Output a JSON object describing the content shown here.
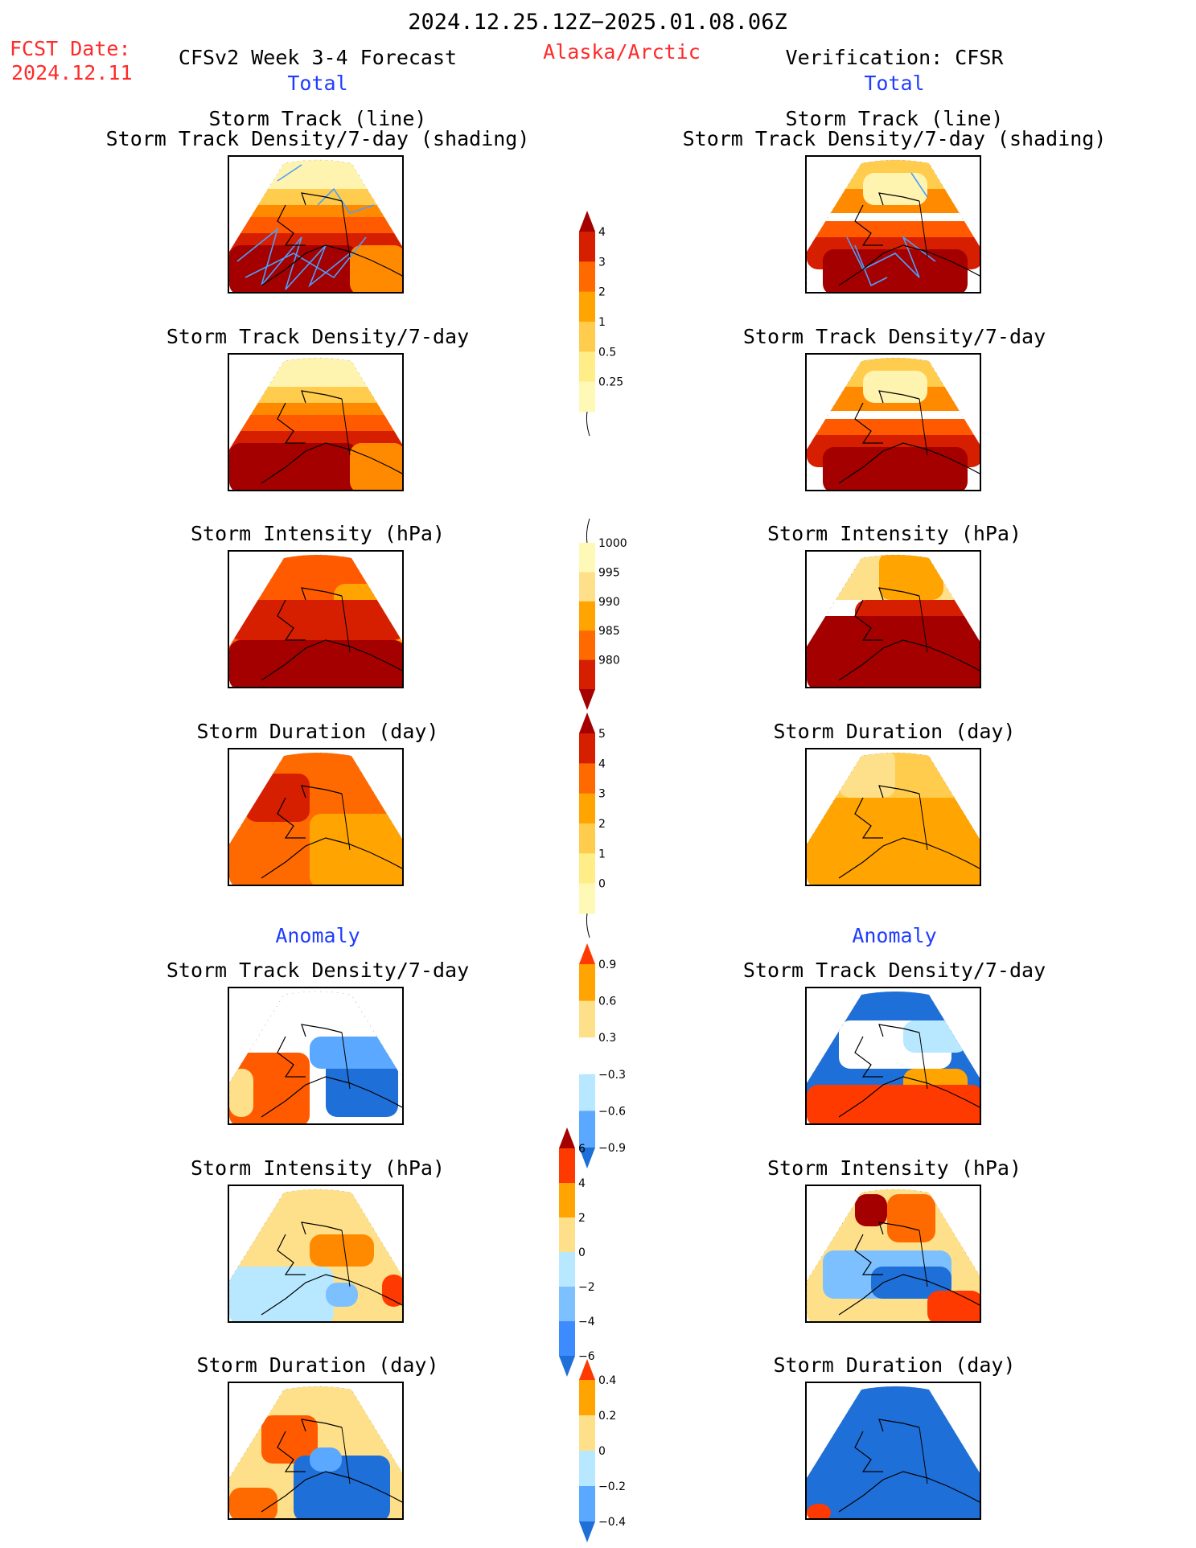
{
  "header": {
    "period": "2024.12.25.12Z−2025.01.08.06Z",
    "fcst_label": "FCST Date:",
    "fcst_date": "2024.12.11",
    "model": "CFSv2 Week 3-4 Forecast",
    "region": "Alaska/Arctic",
    "verification": "Verification: CFSR"
  },
  "sections": {
    "total": "Total",
    "anomaly": "Anomaly"
  },
  "panel_titles": {
    "track_line": "Storm Track (line)",
    "track_density_shading": "Storm Track Density/7-day (shading)",
    "track_density": "Storm Track Density/7-day",
    "intensity": "Storm Intensity (hPa)",
    "duration": "Storm Duration (day)"
  },
  "colorbars": {
    "density_total": {
      "labels": [
        "4",
        "3",
        "2",
        "1",
        "0.5",
        "0.25"
      ],
      "colors": [
        "#a50000",
        "#d61e00",
        "#ff6a00",
        "#ffa400",
        "#ffcc4d",
        "#ffee88",
        "#fff9b8"
      ]
    },
    "intensity_total": {
      "labels": [
        "1000",
        "995",
        "990",
        "985",
        "980"
      ],
      "colors": [
        "#fff9b8",
        "#ffe08a",
        "#ffa400",
        "#ff6a00",
        "#d61e00",
        "#a50000"
      ]
    },
    "duration_total": {
      "labels": [
        "5",
        "4",
        "3",
        "2",
        "1",
        "0"
      ],
      "colors": [
        "#a50000",
        "#d61e00",
        "#ff6a00",
        "#ffa400",
        "#ffcc4d",
        "#ffee88",
        "#fff9b8"
      ]
    },
    "density_anom": {
      "labels": [
        "0.9",
        "0.6",
        "0.3",
        "−0.3",
        "−0.6",
        "−0.9"
      ],
      "colors": [
        "#ff3a00",
        "#ffa400",
        "#ffe08a",
        "#ffffff",
        "#b8e8ff",
        "#5aa8ff",
        "#1f6fd8"
      ]
    },
    "intensity_anom": {
      "labels": [
        "6",
        "4",
        "2",
        "0",
        "−2",
        "−4",
        "−6"
      ],
      "colors": [
        "#a50000",
        "#ff3a00",
        "#ffa400",
        "#ffe08a",
        "#b8e8ff",
        "#7dc0ff",
        "#3c8cff",
        "#1f6fd8"
      ]
    },
    "duration_anom": {
      "labels": [
        "0.4",
        "0.2",
        "0",
        "−0.2",
        "−0.4"
      ],
      "colors": [
        "#ff3a00",
        "#ffa400",
        "#ffe08a",
        "#b8e8ff",
        "#5aa8ff",
        "#1f6fd8"
      ]
    }
  },
  "colors": {
    "title_red": "#ff2a2a",
    "section_blue": "#1f3cff",
    "track_line": "#4aa0ff"
  }
}
